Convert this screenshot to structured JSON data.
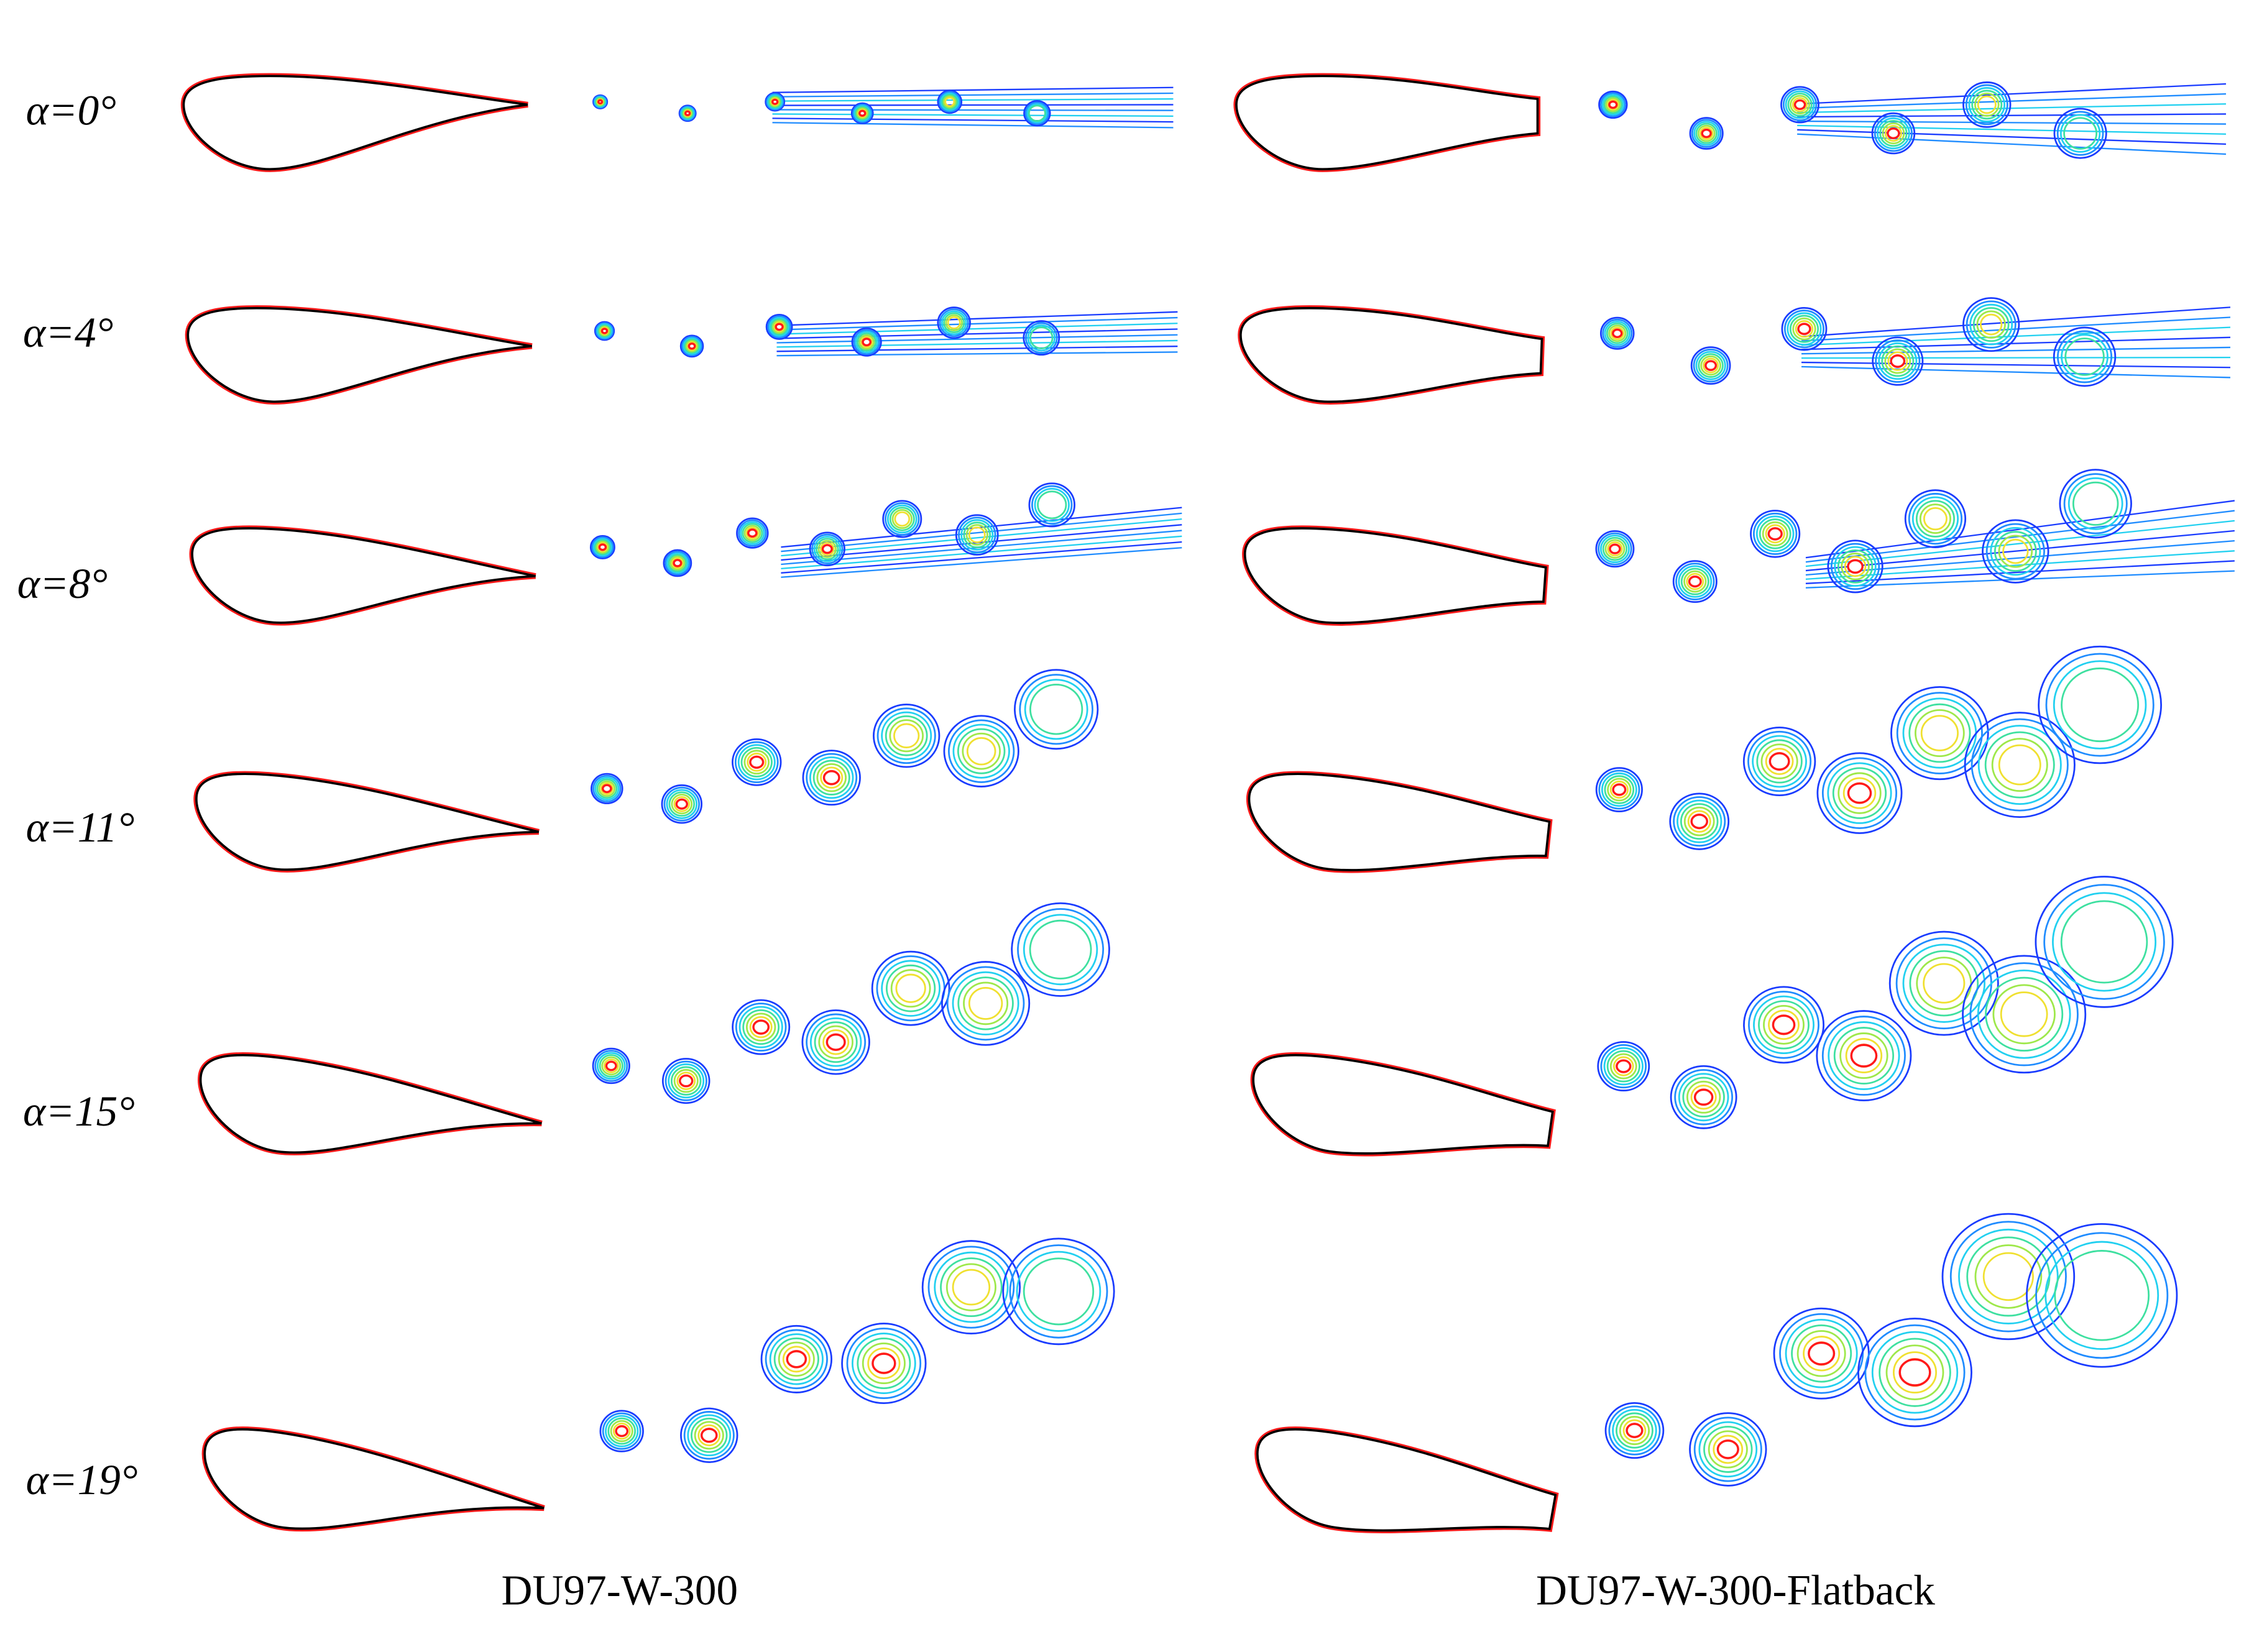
{
  "row_labels": [
    "α=0°",
    "α=4°",
    "α=8°",
    "α=11°",
    "α=15°",
    "α=19°"
  ],
  "column_labels": [
    "DU97-W-300",
    "DU97-W-300-Flatback"
  ]
}
